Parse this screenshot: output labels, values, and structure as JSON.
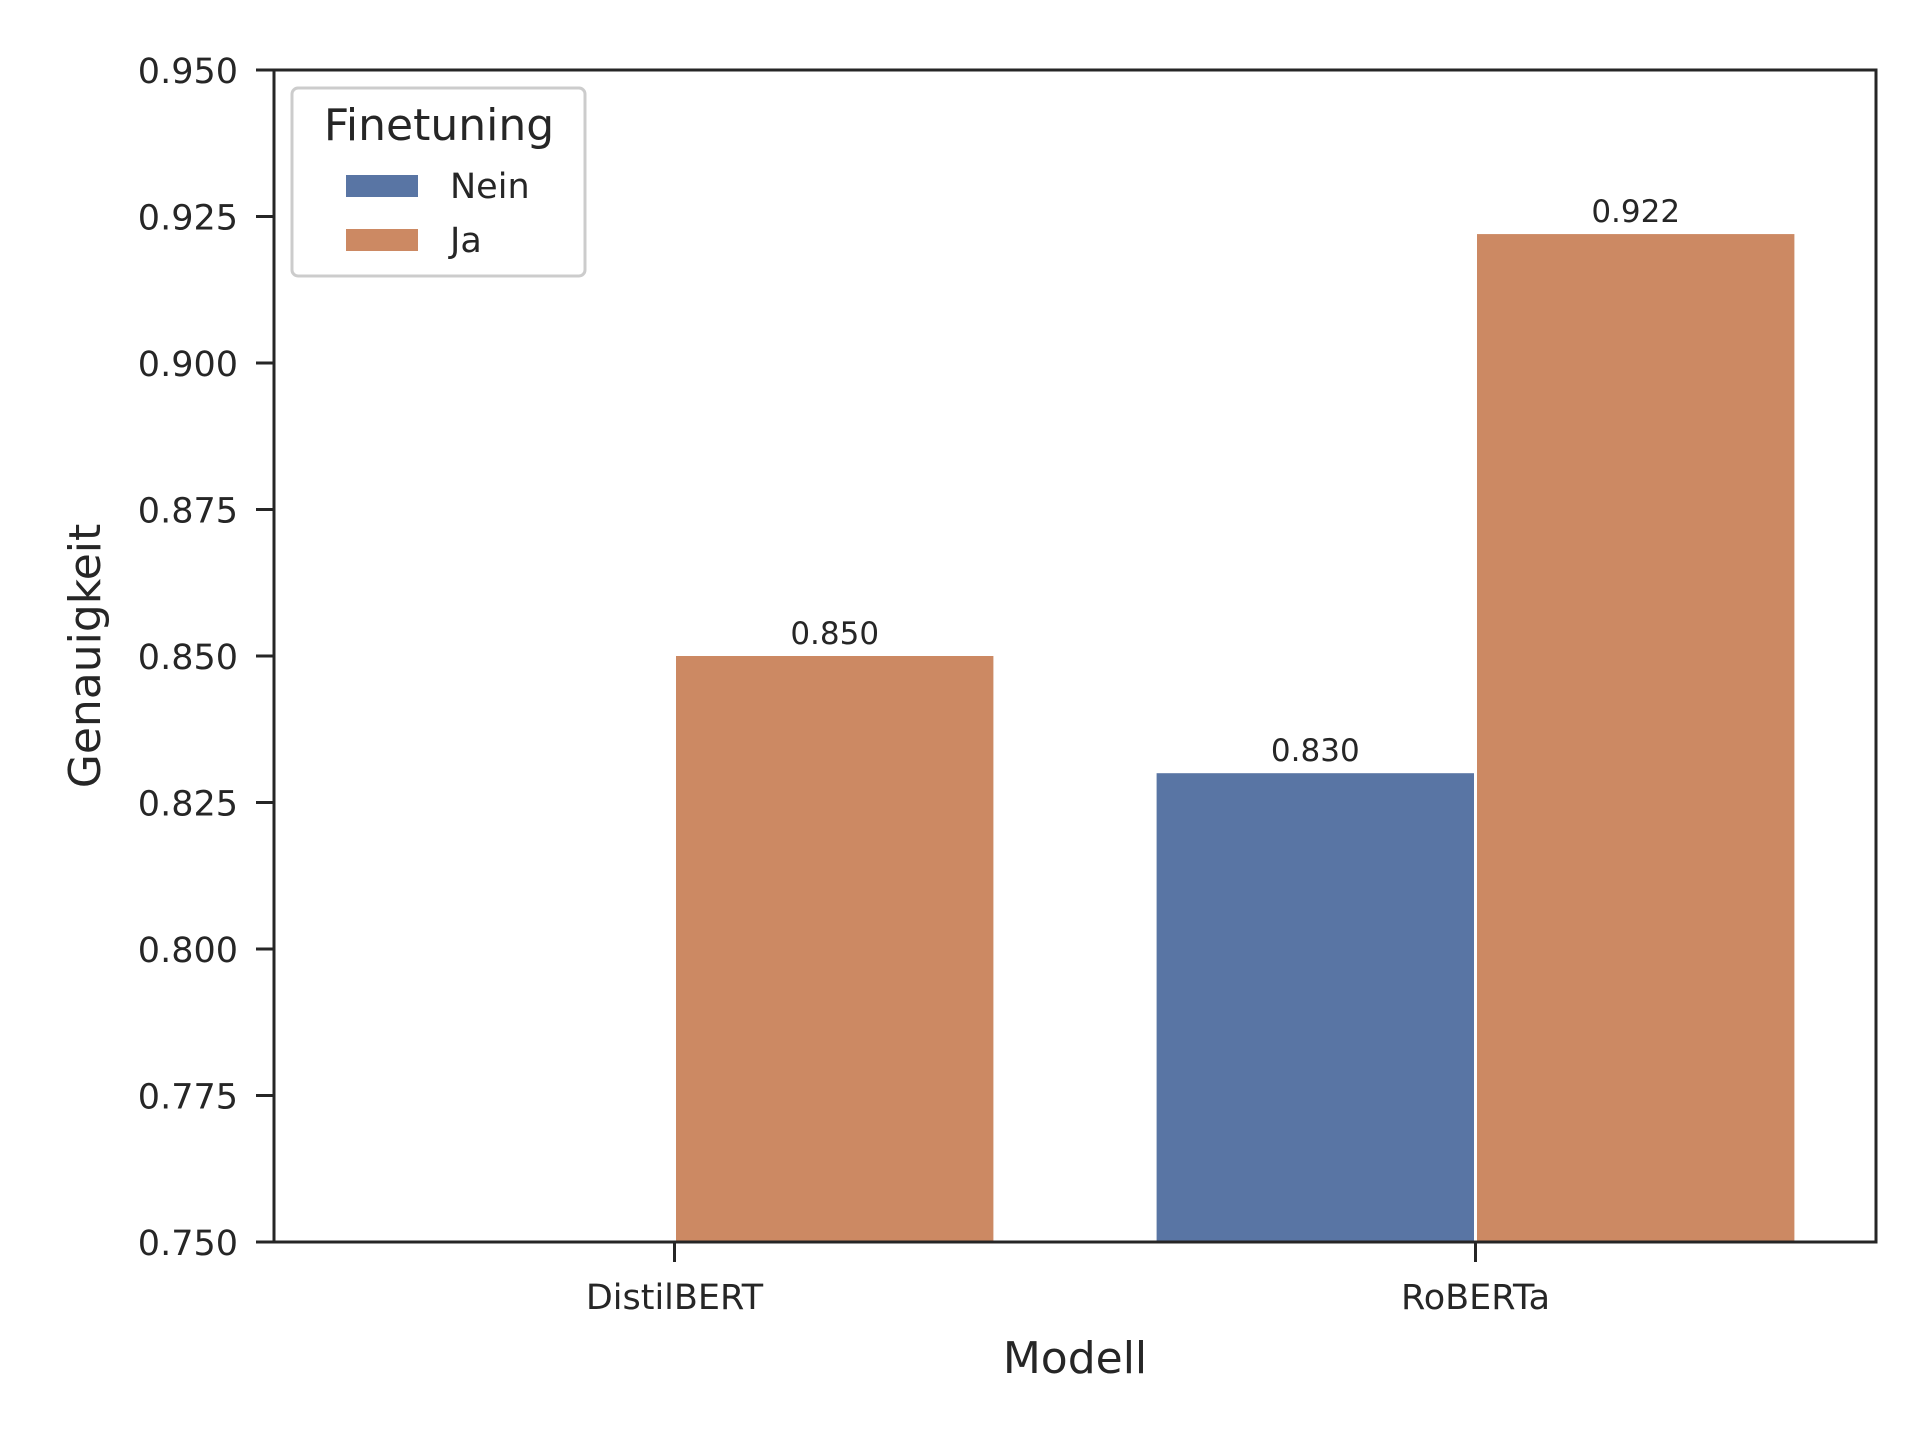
{
  "chart_data": {
    "type": "bar",
    "title": "",
    "xlabel": "Modell",
    "ylabel": "Genauigkeit",
    "categories": [
      "DistilBERT",
      "RoBERTa"
    ],
    "ylim": [
      0.75,
      0.95
    ],
    "yticks": [
      "0.750",
      "0.775",
      "0.800",
      "0.825",
      "0.850",
      "0.875",
      "0.900",
      "0.925",
      "0.950"
    ],
    "legend": {
      "title": "Finetuning",
      "position": "top-left"
    },
    "grid": false,
    "series": [
      {
        "name": "Nein",
        "color": "#5975a4",
        "values": [
          null,
          0.83
        ],
        "labels": [
          null,
          "0.830"
        ]
      },
      {
        "name": "Ja",
        "color": "#cc8963",
        "values": [
          0.85,
          0.922
        ],
        "labels": [
          "0.850",
          "0.922"
        ]
      }
    ]
  }
}
